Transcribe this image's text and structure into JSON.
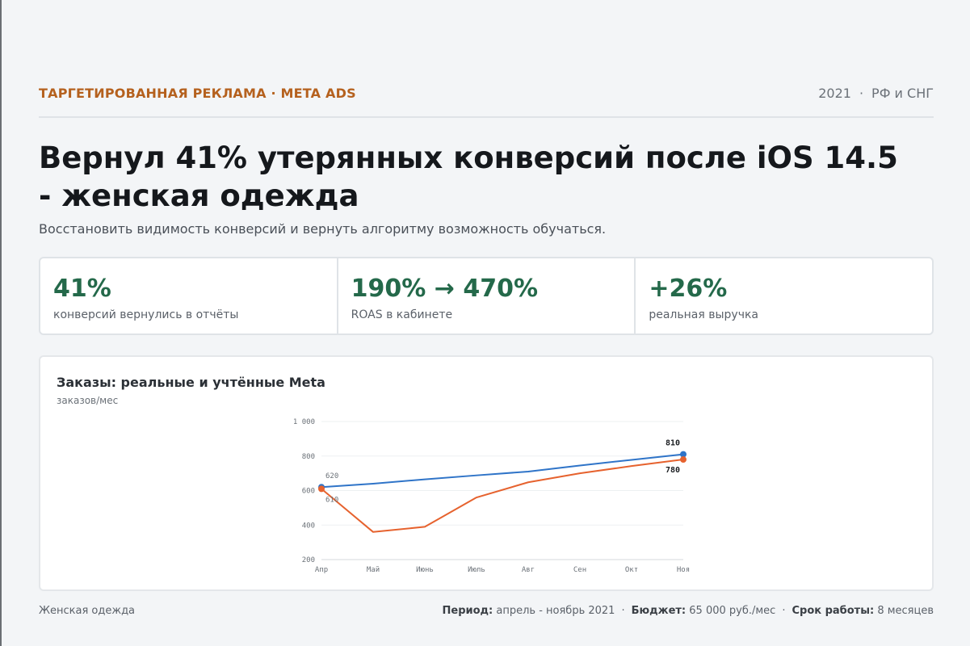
{
  "header": {
    "eyebrow": "ТАРГЕТИРОВАННАЯ РЕКЛАМА · META ADS",
    "year": "2021",
    "separator": "·",
    "region": "РФ и СНГ"
  },
  "title": "Вернул 41% утерянных конверсий после iOS 14.5 - женская одежда",
  "subtitle": "Восстановить видимость конверсий и вернуть алгоритму возможность обучаться.",
  "kpis": [
    {
      "value": "41%",
      "label": "конверсий вернулись в отчёты"
    },
    {
      "value": "190% → 470%",
      "label": "ROAS в кабинете"
    },
    {
      "value": "+26%",
      "label": "реальная выручка"
    }
  ],
  "chart_data": {
    "type": "line",
    "title": "Заказы: реальные и учтённые Meta",
    "ylabel": "заказов/мес",
    "categories": [
      "Апр",
      "Май",
      "Июнь",
      "Июль",
      "Авг",
      "Сен",
      "Окт",
      "Ноя"
    ],
    "ylim": [
      200,
      1000
    ],
    "yticks": [
      200,
      400,
      600,
      800,
      1000
    ],
    "ytick_labels": [
      "200",
      "400",
      "600",
      "800",
      "1 000"
    ],
    "grid": true,
    "series": [
      {
        "color": "#2f74c8",
        "values": [
          620,
          640,
          665,
          688,
          710,
          745,
          778,
          810
        ],
        "labels": {
          "0": "620",
          "7": "810"
        }
      },
      {
        "color": "#e6622e",
        "values": [
          610,
          360,
          390,
          560,
          648,
          700,
          742,
          780
        ],
        "labels": {
          "0": "610",
          "7": "780"
        }
      }
    ]
  },
  "footer": {
    "niche": "Женская одежда",
    "period_label": "Период:",
    "period_value": "апрель - ноябрь 2021",
    "budget_label": "Бюджет:",
    "budget_value": "65 000 руб./мес",
    "duration_label": "Срок работы:",
    "duration_value": "8 месяцев",
    "separator": "·"
  }
}
